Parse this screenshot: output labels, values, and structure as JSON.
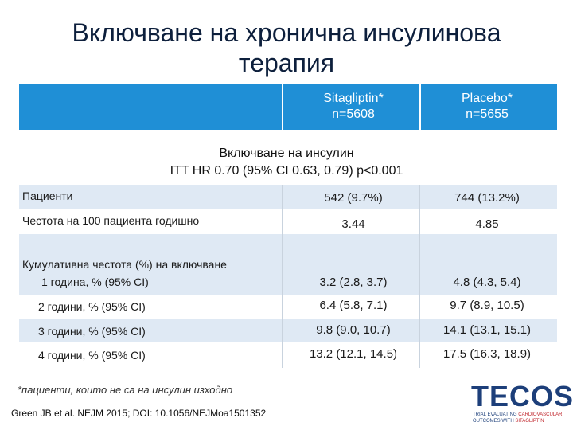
{
  "title_line1": "Включване на хронична инсулинова",
  "title_line2": "терапия",
  "header": {
    "col1_line1": "Sitagliptin*",
    "col1_line2": "n=5608",
    "col2_line1": "Placebo*",
    "col2_line2": "n=5655",
    "bar_color": "#1f8fd6"
  },
  "subtitle_line1": "Включване на инсулин",
  "subtitle_line2": "ITT HR 0.70 (95% CI 0.63, 0.79) p<0.001",
  "rows": [
    {
      "label": "Пациенти",
      "v1": "542 (9.7%)",
      "v2": "744 (13.2%)"
    },
    {
      "label": "Честота на 100 пациента годишно",
      "v1": "3.44",
      "v2": "4.85"
    },
    {
      "label": "Кумулативна честота (%) на включване",
      "v1": "",
      "v2": ""
    },
    {
      "label": "1 година, % (95% CI)",
      "v1": "3.2 (2.8, 3.7)",
      "v2": "4.8 (4.3, 5.4)"
    },
    {
      "label": "2 години, % (95% CI)",
      "v1": "6.4 (5.8, 7.1)",
      "v2": "9.7 (8.9, 10.5)"
    },
    {
      "label": "3 години, % (95% CI)",
      "v1": "9.8 (9.0, 10.7)",
      "v2": "14.1 (13.1, 15.1)"
    },
    {
      "label": "4 години, % (95% CI)",
      "v1": "13.2 (12.1, 14.5)",
      "v2": "17.5 (16.3, 18.9)"
    }
  ],
  "footnote": "*пациенти, които не са на инсулин изходно",
  "citation": "Green JB et al. NEJM 2015; DOI: 10.1056/NEJMoa1501352",
  "logo": {
    "text": "TECOS",
    "sub1_a": "TRIAL EVALUATING ",
    "sub1_b": "CARDIOVASCULAR",
    "sub2_a": "OUTCOMES WITH ",
    "sub2_b": "SITAGLIPTIN"
  }
}
